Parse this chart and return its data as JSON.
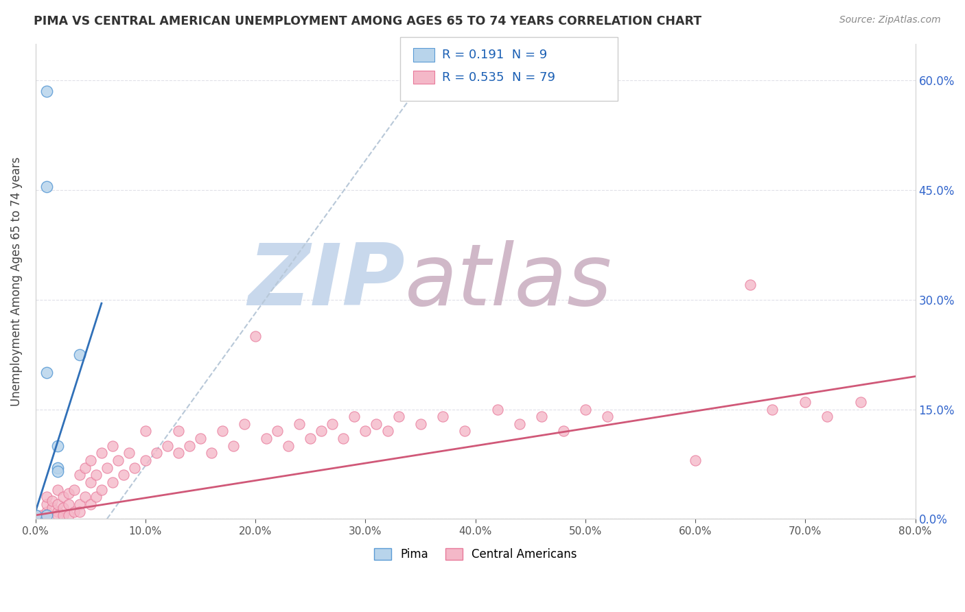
{
  "title": "PIMA VS CENTRAL AMERICAN UNEMPLOYMENT AMONG AGES 65 TO 74 YEARS CORRELATION CHART",
  "source": "Source: ZipAtlas.com",
  "ylabel": "Unemployment Among Ages 65 to 74 years",
  "xlim": [
    0,
    0.8
  ],
  "ylim": [
    0,
    0.65
  ],
  "xticks": [
    0.0,
    0.1,
    0.2,
    0.3,
    0.4,
    0.5,
    0.6,
    0.7,
    0.8
  ],
  "xticklabels": [
    "0.0%",
    "10.0%",
    "20.0%",
    "30.0%",
    "40.0%",
    "50.0%",
    "60.0%",
    "70.0%",
    "80.0%"
  ],
  "yticks_right": [
    0.0,
    0.15,
    0.3,
    0.45,
    0.6
  ],
  "yticklabels_right": [
    "0.0%",
    "15.0%",
    "30.0%",
    "45.0%",
    "60.0%"
  ],
  "pima_color": "#b8d4eb",
  "pima_edge_color": "#5b9bd5",
  "central_color": "#f4b8c8",
  "central_edge_color": "#e8799a",
  "pima_line_color": "#3070b8",
  "central_line_color": "#d05878",
  "dashed_line_color": "#b8c8d8",
  "legend_text_color": "#1a5fb4",
  "pima_R": 0.191,
  "pima_N": 9,
  "central_R": 0.535,
  "central_N": 79,
  "pima_scatter_x": [
    0.01,
    0.01,
    0.02,
    0.02,
    0.02,
    0.04,
    0.01,
    0.01,
    0.0
  ],
  "pima_scatter_y": [
    0.585,
    0.455,
    0.1,
    0.07,
    0.065,
    0.225,
    0.2,
    0.005,
    0.005
  ],
  "pima_line_x": [
    0.0,
    0.06
  ],
  "pima_line_y": [
    0.01,
    0.295
  ],
  "dashed_line_x": [
    0.065,
    0.35
  ],
  "dashed_line_y": [
    0.0,
    0.595
  ],
  "central_line_x": [
    0.0,
    0.8
  ],
  "central_line_y": [
    0.005,
    0.195
  ],
  "central_scatter_x": [
    0.005,
    0.01,
    0.01,
    0.01,
    0.01,
    0.015,
    0.015,
    0.02,
    0.02,
    0.02,
    0.02,
    0.025,
    0.025,
    0.025,
    0.03,
    0.03,
    0.03,
    0.035,
    0.035,
    0.04,
    0.04,
    0.04,
    0.045,
    0.045,
    0.05,
    0.05,
    0.05,
    0.055,
    0.055,
    0.06,
    0.06,
    0.065,
    0.07,
    0.07,
    0.075,
    0.08,
    0.085,
    0.09,
    0.1,
    0.1,
    0.11,
    0.12,
    0.13,
    0.13,
    0.14,
    0.15,
    0.16,
    0.17,
    0.18,
    0.19,
    0.2,
    0.21,
    0.22,
    0.23,
    0.24,
    0.25,
    0.26,
    0.27,
    0.28,
    0.29,
    0.3,
    0.31,
    0.32,
    0.33,
    0.35,
    0.37,
    0.39,
    0.42,
    0.44,
    0.46,
    0.48,
    0.5,
    0.52,
    0.6,
    0.65,
    0.67,
    0.7,
    0.72,
    0.75
  ],
  "central_scatter_y": [
    0.005,
    0.01,
    0.02,
    0.03,
    0.005,
    0.015,
    0.025,
    0.01,
    0.02,
    0.04,
    0.005,
    0.015,
    0.03,
    0.005,
    0.02,
    0.035,
    0.005,
    0.01,
    0.04,
    0.02,
    0.06,
    0.01,
    0.03,
    0.07,
    0.02,
    0.05,
    0.08,
    0.03,
    0.06,
    0.04,
    0.09,
    0.07,
    0.05,
    0.1,
    0.08,
    0.06,
    0.09,
    0.07,
    0.08,
    0.12,
    0.09,
    0.1,
    0.09,
    0.12,
    0.1,
    0.11,
    0.09,
    0.12,
    0.1,
    0.13,
    0.25,
    0.11,
    0.12,
    0.1,
    0.13,
    0.11,
    0.12,
    0.13,
    0.11,
    0.14,
    0.12,
    0.13,
    0.12,
    0.14,
    0.13,
    0.14,
    0.12,
    0.15,
    0.13,
    0.14,
    0.12,
    0.15,
    0.14,
    0.08,
    0.32,
    0.15,
    0.16,
    0.14,
    0.16
  ],
  "watermark_zip": "ZIP",
  "watermark_atlas": "atlas",
  "watermark_color_zip": "#c8d8ec",
  "watermark_color_atlas": "#d0b8c8",
  "background_color": "#ffffff",
  "grid_color": "#e0e0e8"
}
